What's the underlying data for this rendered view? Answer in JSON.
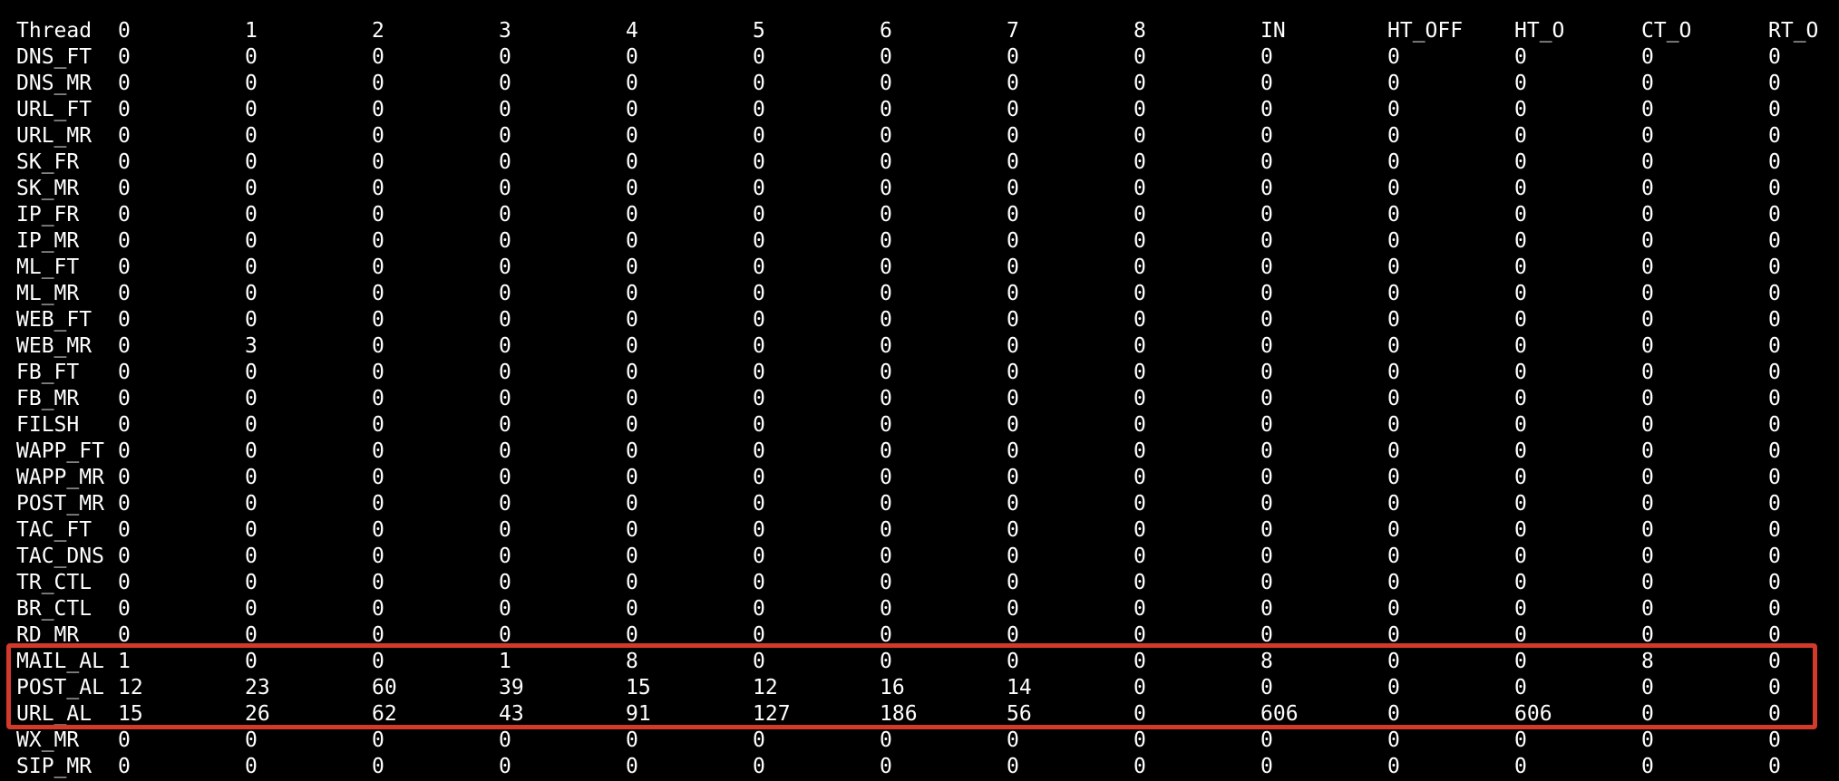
{
  "header": [
    "Thread",
    "0",
    "1",
    "2",
    "3",
    "4",
    "5",
    "6",
    "7",
    "8",
    "IN",
    "HT_OFF",
    "HT_O",
    "CT_O",
    "RT_O"
  ],
  "rows": [
    [
      "DNS_FT",
      "0",
      "0",
      "0",
      "0",
      "0",
      "0",
      "0",
      "0",
      "0",
      "0",
      "0",
      "0",
      "0",
      "0"
    ],
    [
      "DNS_MR",
      "0",
      "0",
      "0",
      "0",
      "0",
      "0",
      "0",
      "0",
      "0",
      "0",
      "0",
      "0",
      "0",
      "0"
    ],
    [
      "URL_FT",
      "0",
      "0",
      "0",
      "0",
      "0",
      "0",
      "0",
      "0",
      "0",
      "0",
      "0",
      "0",
      "0",
      "0"
    ],
    [
      "URL_MR",
      "0",
      "0",
      "0",
      "0",
      "0",
      "0",
      "0",
      "0",
      "0",
      "0",
      "0",
      "0",
      "0",
      "0"
    ],
    [
      "SK_FR",
      "0",
      "0",
      "0",
      "0",
      "0",
      "0",
      "0",
      "0",
      "0",
      "0",
      "0",
      "0",
      "0",
      "0"
    ],
    [
      "SK_MR",
      "0",
      "0",
      "0",
      "0",
      "0",
      "0",
      "0",
      "0",
      "0",
      "0",
      "0",
      "0",
      "0",
      "0"
    ],
    [
      "IP_FR",
      "0",
      "0",
      "0",
      "0",
      "0",
      "0",
      "0",
      "0",
      "0",
      "0",
      "0",
      "0",
      "0",
      "0"
    ],
    [
      "IP_MR",
      "0",
      "0",
      "0",
      "0",
      "0",
      "0",
      "0",
      "0",
      "0",
      "0",
      "0",
      "0",
      "0",
      "0"
    ],
    [
      "ML_FT",
      "0",
      "0",
      "0",
      "0",
      "0",
      "0",
      "0",
      "0",
      "0",
      "0",
      "0",
      "0",
      "0",
      "0"
    ],
    [
      "ML_MR",
      "0",
      "0",
      "0",
      "0",
      "0",
      "0",
      "0",
      "0",
      "0",
      "0",
      "0",
      "0",
      "0",
      "0"
    ],
    [
      "WEB_FT",
      "0",
      "0",
      "0",
      "0",
      "0",
      "0",
      "0",
      "0",
      "0",
      "0",
      "0",
      "0",
      "0",
      "0"
    ],
    [
      "WEB_MR",
      "0",
      "3",
      "0",
      "0",
      "0",
      "0",
      "0",
      "0",
      "0",
      "0",
      "0",
      "0",
      "0",
      "0"
    ],
    [
      "FB_FT",
      "0",
      "0",
      "0",
      "0",
      "0",
      "0",
      "0",
      "0",
      "0",
      "0",
      "0",
      "0",
      "0",
      "0"
    ],
    [
      "FB_MR",
      "0",
      "0",
      "0",
      "0",
      "0",
      "0",
      "0",
      "0",
      "0",
      "0",
      "0",
      "0",
      "0",
      "0"
    ],
    [
      "FILSH",
      "0",
      "0",
      "0",
      "0",
      "0",
      "0",
      "0",
      "0",
      "0",
      "0",
      "0",
      "0",
      "0",
      "0"
    ],
    [
      "WAPP_FT",
      "0",
      "0",
      "0",
      "0",
      "0",
      "0",
      "0",
      "0",
      "0",
      "0",
      "0",
      "0",
      "0",
      "0"
    ],
    [
      "WAPP_MR",
      "0",
      "0",
      "0",
      "0",
      "0",
      "0",
      "0",
      "0",
      "0",
      "0",
      "0",
      "0",
      "0",
      "0"
    ],
    [
      "POST_MR",
      "0",
      "0",
      "0",
      "0",
      "0",
      "0",
      "0",
      "0",
      "0",
      "0",
      "0",
      "0",
      "0",
      "0"
    ],
    [
      "TAC_FT",
      "0",
      "0",
      "0",
      "0",
      "0",
      "0",
      "0",
      "0",
      "0",
      "0",
      "0",
      "0",
      "0",
      "0"
    ],
    [
      "TAC_DNS",
      "0",
      "0",
      "0",
      "0",
      "0",
      "0",
      "0",
      "0",
      "0",
      "0",
      "0",
      "0",
      "0",
      "0"
    ],
    [
      "TR_CTL",
      "0",
      "0",
      "0",
      "0",
      "0",
      "0",
      "0",
      "0",
      "0",
      "0",
      "0",
      "0",
      "0",
      "0"
    ],
    [
      "BR_CTL",
      "0",
      "0",
      "0",
      "0",
      "0",
      "0",
      "0",
      "0",
      "0",
      "0",
      "0",
      "0",
      "0",
      "0"
    ],
    [
      "RD_MR",
      "0",
      "0",
      "0",
      "0",
      "0",
      "0",
      "0",
      "0",
      "0",
      "0",
      "0",
      "0",
      "0",
      "0"
    ],
    [
      "MAIL_AL",
      "1",
      "0",
      "0",
      "1",
      "8",
      "0",
      "0",
      "0",
      "0",
      "8",
      "0",
      "0",
      "8",
      "0"
    ],
    [
      "POST_AL",
      "12",
      "23",
      "60",
      "39",
      "15",
      "12",
      "16",
      "14",
      "0",
      "0",
      "0",
      "0",
      "0",
      "0"
    ],
    [
      "URL_AL",
      "15",
      "26",
      "62",
      "43",
      "91",
      "127",
      "186",
      "56",
      "0",
      "606",
      "0",
      "606",
      "0",
      "0"
    ],
    [
      "WX_MR",
      "0",
      "0",
      "0",
      "0",
      "0",
      "0",
      "0",
      "0",
      "0",
      "0",
      "0",
      "0",
      "0",
      "0"
    ],
    [
      "SIP_MR",
      "0",
      "0",
      "0",
      "0",
      "0",
      "0",
      "0",
      "0",
      "0",
      "0",
      "0",
      "0",
      "0",
      "0"
    ]
  ],
  "highlighted_rows": [
    "MAIL_AL",
    "POST_AL",
    "URL_AL"
  ],
  "colors": {
    "background": "#000000",
    "text": "#ffffff",
    "highlight_border": "#d33a2c"
  }
}
